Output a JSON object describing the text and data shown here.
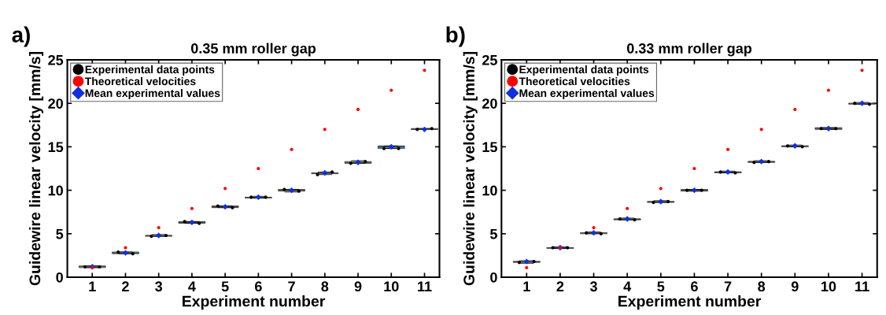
{
  "chart_data": [
    {
      "type": "box",
      "title": "0.35 mm roller gap",
      "xlabel": "Experiment number",
      "ylabel": "Guidewire linear velocity [mm/s]",
      "annotations": [
        "a)"
      ],
      "categories": [
        "1",
        "2",
        "3",
        "4",
        "5",
        "6",
        "7",
        "8",
        "9",
        "10",
        "11"
      ],
      "ylim": [
        0,
        25
      ],
      "yticks": [
        0,
        5,
        10,
        15,
        20,
        25
      ],
      "grid": false,
      "legend": "top left",
      "colors": [
        "#b0b0b0",
        "#8fb0a8",
        "#c8c840",
        "#606060",
        "#a02040",
        "#a0a0a0",
        "#f0b030",
        "#8040a0",
        "#70b040",
        "#3090d0",
        "#d06020"
      ],
      "boxes": [
        {
          "low": 1.1,
          "q1": 1.1,
          "median": 1.2,
          "q3": 1.3,
          "high": 1.3
        },
        {
          "low": 2.7,
          "q1": 2.7,
          "median": 2.8,
          "q3": 2.9,
          "high": 2.9
        },
        {
          "low": 4.7,
          "q1": 4.7,
          "median": 4.8,
          "q3": 4.8,
          "high": 4.9
        },
        {
          "low": 6.2,
          "q1": 6.2,
          "median": 6.3,
          "q3": 6.4,
          "high": 6.4
        },
        {
          "low": 8.0,
          "q1": 8.0,
          "median": 8.1,
          "q3": 8.2,
          "high": 8.2
        },
        {
          "low": 9.1,
          "q1": 9.1,
          "median": 9.2,
          "q3": 9.2,
          "high": 9.3
        },
        {
          "low": 9.8,
          "q1": 9.9,
          "median": 10.0,
          "q3": 10.1,
          "high": 10.1
        },
        {
          "low": 11.8,
          "q1": 11.9,
          "median": 12.0,
          "q3": 12.0,
          "high": 12.1
        },
        {
          "low": 13.1,
          "q1": 13.1,
          "median": 13.2,
          "q3": 13.3,
          "high": 13.4
        },
        {
          "low": 14.8,
          "q1": 14.8,
          "median": 15.0,
          "q3": 15.1,
          "high": 15.1
        },
        {
          "low": 17.0,
          "q1": 17.0,
          "median": 17.0,
          "q3": 17.1,
          "high": 17.1
        }
      ],
      "series": [
        {
          "name": "Experimental data points",
          "type": "scatter",
          "marker": "circle",
          "color": "#000000",
          "x": [
            "1",
            "1",
            "2",
            "2",
            "3",
            "3",
            "4",
            "4",
            "5",
            "5",
            "6",
            "6",
            "7",
            "7",
            "8",
            "8",
            "9",
            "9",
            "10",
            "10",
            "11",
            "11"
          ],
          "values": [
            1.2,
            1.2,
            2.9,
            2.7,
            4.7,
            4.8,
            6.4,
            6.2,
            8.2,
            8.0,
            9.2,
            9.2,
            10.1,
            9.9,
            11.8,
            12.1,
            13.1,
            13.3,
            14.8,
            14.8,
            17.0,
            17.1
          ]
        },
        {
          "name": "Theoretical velocities",
          "type": "scatter",
          "marker": "circle",
          "color": "#ff0000",
          "values": [
            1.1,
            3.4,
            5.7,
            7.9,
            10.2,
            12.5,
            14.7,
            17.0,
            19.3,
            21.5,
            23.8
          ]
        },
        {
          "name": "Mean experimental values",
          "type": "scatter",
          "marker": "diamond",
          "color": "#1030e0",
          "values": [
            1.2,
            2.8,
            4.8,
            6.3,
            8.1,
            9.2,
            10.0,
            12.0,
            13.2,
            15.0,
            17.0
          ]
        }
      ]
    },
    {
      "type": "box",
      "title": "0.33 mm roller gap",
      "xlabel": "Experiment number",
      "ylabel": "Guidewire linear velocity [mm/s]",
      "annotations": [
        "b)"
      ],
      "categories": [
        "1",
        "2",
        "3",
        "4",
        "5",
        "6",
        "7",
        "8",
        "9",
        "10",
        "11"
      ],
      "ylim": [
        0,
        25
      ],
      "yticks": [
        0,
        5,
        10,
        15,
        20,
        25
      ],
      "grid": false,
      "legend": "top left",
      "colors": [
        "#c040c0",
        "#30a080",
        "#c0b030",
        "#505050",
        "#a02050",
        "#808080",
        "#d0a020",
        "#9050b0",
        "#909090",
        "#909090",
        "#d05020"
      ],
      "boxes": [
        {
          "low": 1.6,
          "q1": 1.7,
          "median": 1.8,
          "q3": 1.8,
          "high": 1.9
        },
        {
          "low": 3.3,
          "q1": 3.3,
          "median": 3.4,
          "q3": 3.4,
          "high": 3.5
        },
        {
          "low": 5.0,
          "q1": 5.0,
          "median": 5.1,
          "q3": 5.1,
          "high": 5.2
        },
        {
          "low": 6.6,
          "q1": 6.6,
          "median": 6.7,
          "q3": 6.7,
          "high": 6.8
        },
        {
          "low": 8.6,
          "q1": 8.6,
          "median": 8.7,
          "q3": 8.7,
          "high": 8.8
        },
        {
          "low": 9.9,
          "q1": 9.9,
          "median": 10.0,
          "q3": 10.1,
          "high": 10.1
        },
        {
          "low": 12.0,
          "q1": 12.0,
          "median": 12.1,
          "q3": 12.1,
          "high": 12.2
        },
        {
          "low": 13.2,
          "q1": 13.2,
          "median": 13.3,
          "q3": 13.3,
          "high": 13.4
        },
        {
          "low": 15.0,
          "q1": 15.0,
          "median": 15.1,
          "q3": 15.1,
          "high": 15.2
        },
        {
          "low": 17.0,
          "q1": 17.0,
          "median": 17.1,
          "q3": 17.2,
          "high": 17.2
        },
        {
          "low": 19.9,
          "q1": 19.9,
          "median": 20.0,
          "q3": 20.0,
          "high": 20.1
        }
      ],
      "series": [
        {
          "name": "Experimental data points",
          "type": "scatter",
          "marker": "circle",
          "color": "#000000",
          "x": [
            "1",
            "1",
            "2",
            "2",
            "3",
            "3",
            "4",
            "4",
            "5",
            "5",
            "6",
            "6",
            "7",
            "7",
            "8",
            "8",
            "9",
            "9",
            "10",
            "10",
            "11",
            "11"
          ],
          "values": [
            1.7,
            1.8,
            3.4,
            3.4,
            5.1,
            5.0,
            6.7,
            6.6,
            8.6,
            8.7,
            10.0,
            10.0,
            12.1,
            12.0,
            13.2,
            13.3,
            15.1,
            15.0,
            17.1,
            17.1,
            20.0,
            19.9
          ]
        },
        {
          "name": "Theoretical velocities",
          "type": "scatter",
          "marker": "circle",
          "color": "#ff0000",
          "values": [
            1.1,
            3.4,
            5.7,
            7.9,
            10.2,
            12.5,
            14.7,
            17.0,
            19.3,
            21.5,
            23.8
          ]
        },
        {
          "name": "Mean experimental values",
          "type": "scatter",
          "marker": "diamond",
          "color": "#1030e0",
          "values": [
            1.8,
            3.4,
            5.1,
            6.7,
            8.7,
            10.0,
            12.1,
            13.3,
            15.1,
            17.1,
            20.0
          ]
        }
      ]
    }
  ]
}
